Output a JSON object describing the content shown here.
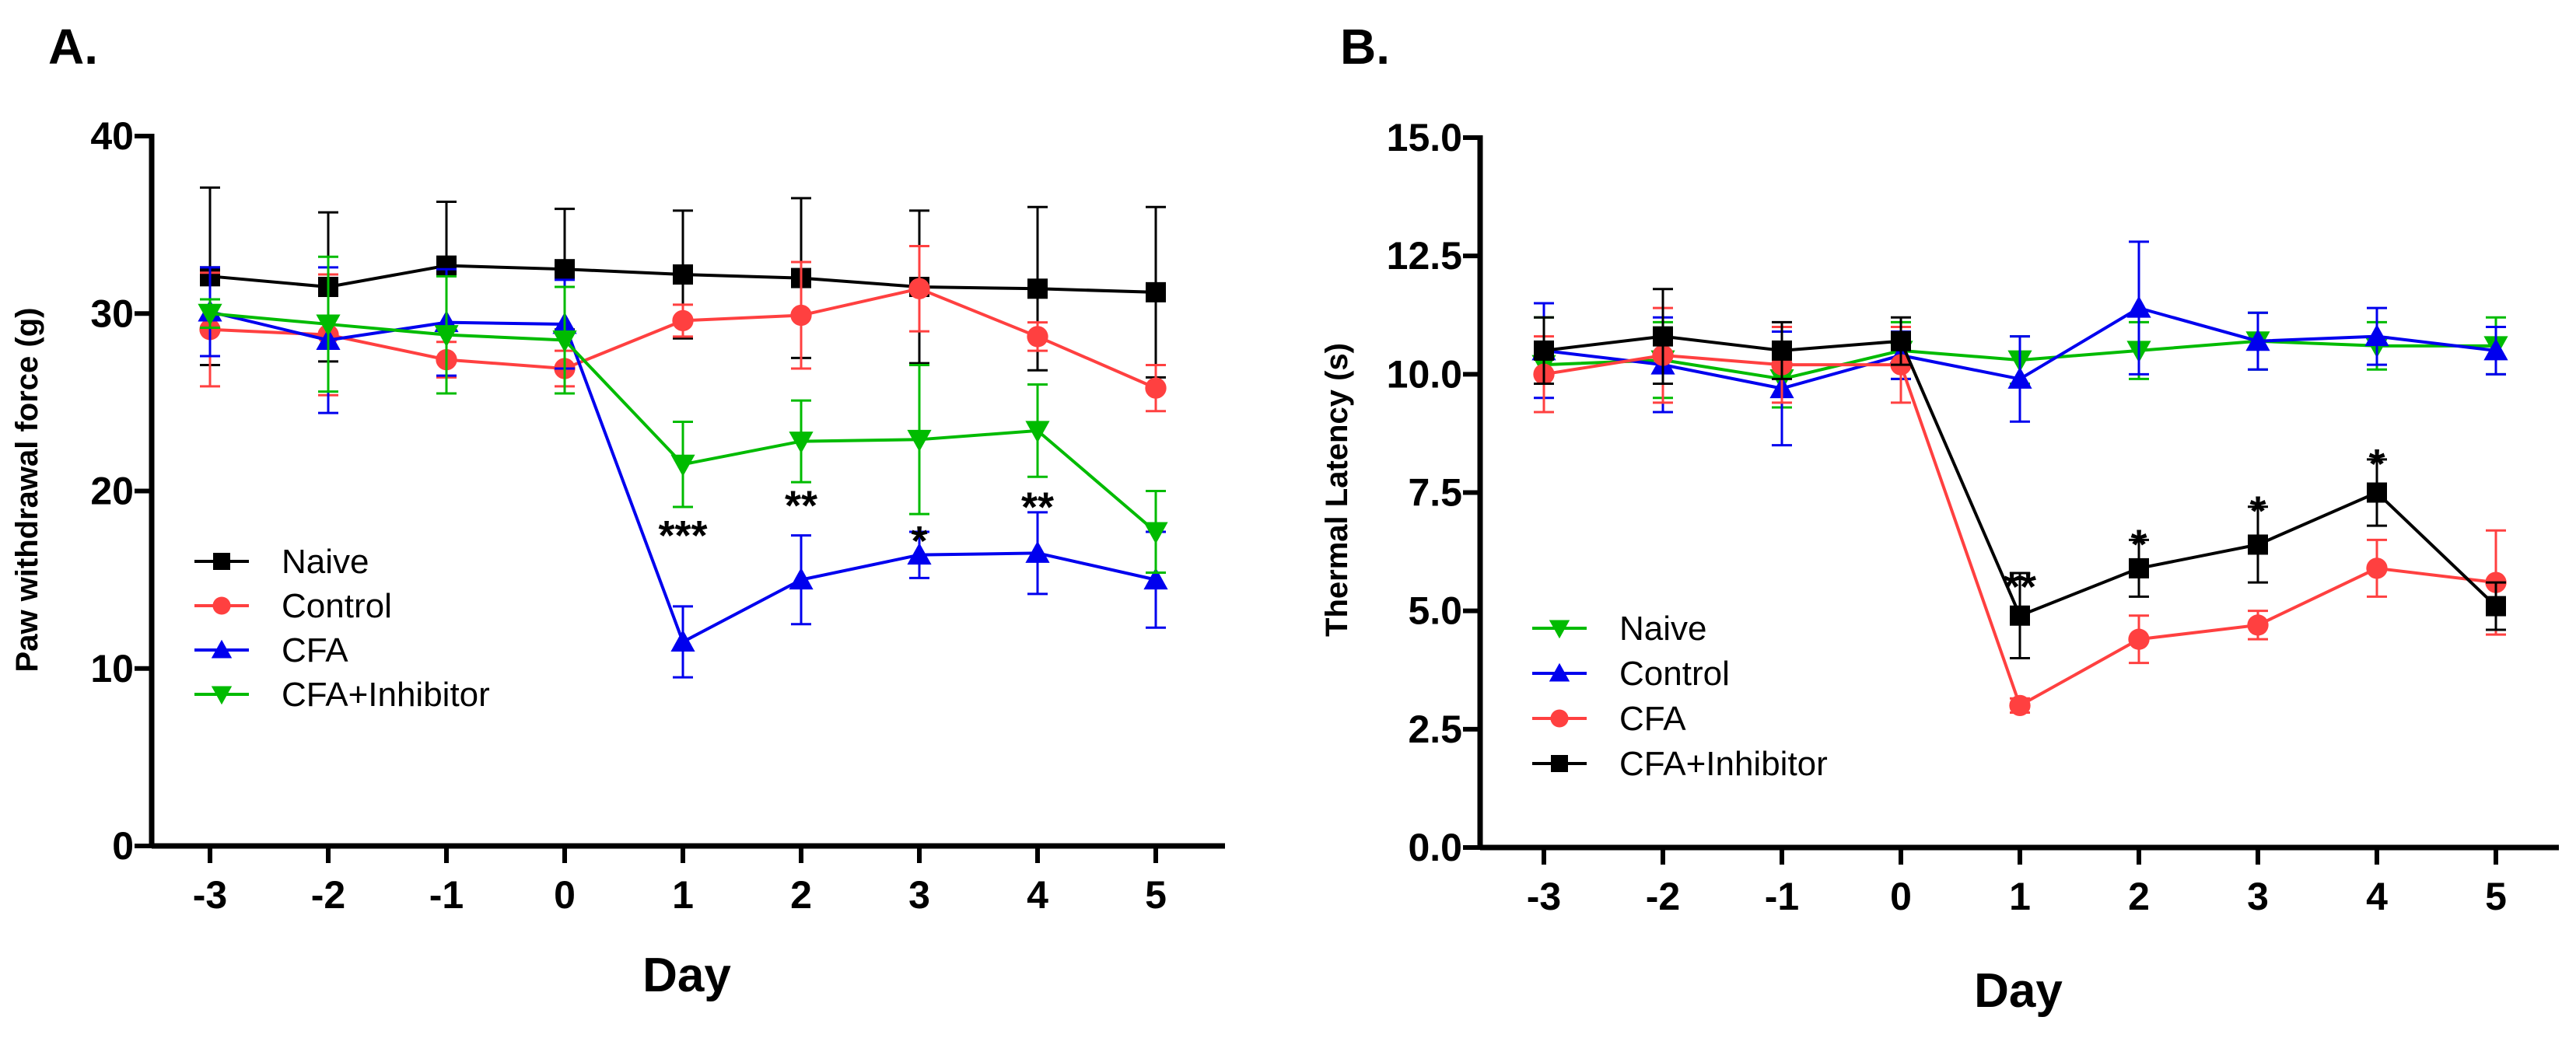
{
  "chart_data": [
    {
      "type": "line",
      "panel_label": "A.",
      "xlabel": "Day",
      "ylabel": "Paw withdrawal force (g)",
      "x": [
        -3,
        -2,
        -1,
        0,
        1,
        2,
        3,
        4,
        5
      ],
      "xtick_labels": [
        "-3",
        "-2",
        "-1",
        "0",
        "1",
        "2",
        "3",
        "4",
        "5"
      ],
      "ylim": [
        0,
        40
      ],
      "yticks": [
        0,
        10,
        20,
        30,
        40
      ],
      "ytick_labels": [
        "0",
        "10",
        "20",
        "30",
        "40"
      ],
      "legend_position": "center-left",
      "series": [
        {
          "name": "Naive",
          "color": "#000000",
          "marker": "square",
          "values": [
            32.1,
            31.5,
            32.7,
            32.5,
            32.2,
            32.0,
            31.5,
            31.4,
            31.2
          ],
          "errors": [
            5.0,
            4.2,
            3.6,
            3.4,
            3.6,
            4.5,
            4.3,
            4.6,
            4.8
          ]
        },
        {
          "name": "Control",
          "color": "#ff4040",
          "marker": "circle",
          "values": [
            29.1,
            28.8,
            27.4,
            26.9,
            29.6,
            29.9,
            31.4,
            28.7,
            25.8
          ],
          "errors": [
            3.2,
            3.4,
            1.0,
            1.0,
            0.9,
            3.0,
            2.4,
            0.8,
            1.3
          ]
        },
        {
          "name": "CFA",
          "color": "#0000ee",
          "marker": "triangle-up",
          "values": [
            30.1,
            28.5,
            29.5,
            29.4,
            11.5,
            15.0,
            16.4,
            16.5,
            15.0
          ],
          "errors": [
            2.5,
            4.1,
            3.0,
            2.5,
            2.0,
            2.5,
            1.3,
            2.3,
            2.7
          ]
        },
        {
          "name": "CFA+Inhibitor",
          "color": "#00bb00",
          "marker": "triangle-down",
          "values": [
            30.0,
            29.4,
            28.8,
            28.5,
            21.5,
            22.8,
            22.9,
            23.4,
            17.7
          ],
          "errors": [
            0.8,
            3.8,
            3.3,
            3.0,
            2.4,
            2.3,
            4.2,
            2.6,
            2.3
          ]
        }
      ],
      "annotations": [
        {
          "x": 1,
          "text": "***",
          "value": 18.0
        },
        {
          "x": 2,
          "text": "**",
          "value": 19.7
        },
        {
          "x": 3,
          "text": "*",
          "value": 17.7
        },
        {
          "x": 4,
          "text": "**",
          "value": 19.6
        }
      ]
    },
    {
      "type": "line",
      "panel_label": "B.",
      "xlabel": "Day",
      "ylabel": "Thermal Latency (s)",
      "x": [
        -3,
        -2,
        -1,
        0,
        1,
        2,
        3,
        4,
        5
      ],
      "xtick_labels": [
        "-3",
        "-2",
        "-1",
        "0",
        "1",
        "2",
        "3",
        "4",
        "5"
      ],
      "ylim": [
        0,
        15
      ],
      "yticks": [
        0,
        2.5,
        5,
        7.5,
        10,
        12.5,
        15
      ],
      "ytick_labels": [
        "0.0",
        "2.5",
        "5.0",
        "7.5",
        "10.0",
        "12.5",
        "15.0"
      ],
      "legend_position": "lower-left",
      "series": [
        {
          "name": "Naive",
          "color": "#00bb00",
          "marker": "triangle-down",
          "values": [
            10.2,
            10.3,
            9.9,
            10.5,
            10.3,
            10.5,
            10.7,
            10.6,
            10.6
          ],
          "errors": [
            1.0,
            0.8,
            0.6,
            0.6,
            0.5,
            0.6,
            0.6,
            0.5,
            0.6
          ]
        },
        {
          "name": "Control",
          "color": "#0000ee",
          "marker": "triangle-up",
          "values": [
            10.5,
            10.2,
            9.7,
            10.4,
            9.9,
            11.4,
            10.7,
            10.8,
            10.5
          ],
          "errors": [
            1.0,
            1.0,
            1.2,
            0.5,
            0.9,
            1.4,
            0.6,
            0.6,
            0.5
          ]
        },
        {
          "name": "CFA",
          "color": "#ff4040",
          "marker": "circle",
          "values": [
            10.0,
            10.4,
            10.2,
            10.2,
            3.0,
            4.4,
            4.7,
            5.9,
            5.6
          ],
          "errors": [
            0.8,
            1.0,
            0.8,
            0.8,
            0.15,
            0.5,
            0.3,
            0.6,
            1.1
          ]
        },
        {
          "name": "CFA+Inhibitor",
          "color": "#000000",
          "marker": "square",
          "values": [
            10.5,
            10.8,
            10.5,
            10.7,
            4.9,
            5.9,
            6.4,
            7.5,
            5.1
          ],
          "errors": [
            0.7,
            1.0,
            0.6,
            0.5,
            0.9,
            0.6,
            0.8,
            0.7,
            0.5
          ]
        }
      ],
      "annotations": [
        {
          "x": 1,
          "text": "**",
          "value": 5.7
        },
        {
          "x": 2,
          "text": "*",
          "value": 6.6
        },
        {
          "x": 3,
          "text": "*",
          "value": 7.3
        },
        {
          "x": 4,
          "text": "*",
          "value": 8.3
        }
      ]
    }
  ]
}
